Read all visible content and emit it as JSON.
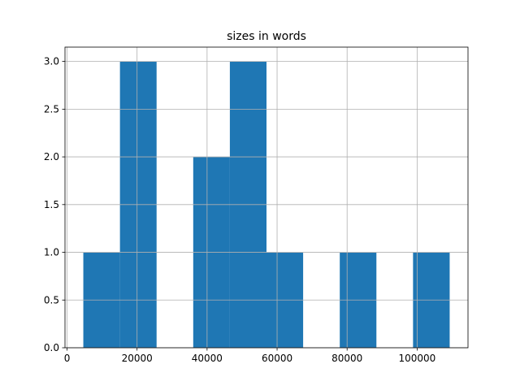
{
  "chart_data": {
    "type": "histogram",
    "title": "sizes in words",
    "bins": [
      4650,
      15115,
      25580,
      36045,
      46510,
      56975,
      67440,
      77905,
      88370,
      98835,
      109300
    ],
    "values": [
      1,
      3,
      0,
      2,
      3,
      1,
      0,
      1,
      0,
      1
    ],
    "color": "#1f77b4",
    "xlim": [
      -583,
      114533
    ],
    "xticks": [
      0,
      20000,
      40000,
      60000,
      80000,
      100000
    ],
    "ylim": [
      0,
      3.15
    ],
    "yticks": [
      {
        "value": 0,
        "label": "0.0"
      },
      {
        "value": 0.5,
        "label": "0.5"
      },
      {
        "value": 1,
        "label": "1.0"
      },
      {
        "value": 1.5,
        "label": "1.5"
      },
      {
        "value": 2,
        "label": "2.0"
      },
      {
        "value": 2.5,
        "label": "2.5"
      },
      {
        "value": 3,
        "label": "3.0"
      }
    ],
    "grid": true
  }
}
